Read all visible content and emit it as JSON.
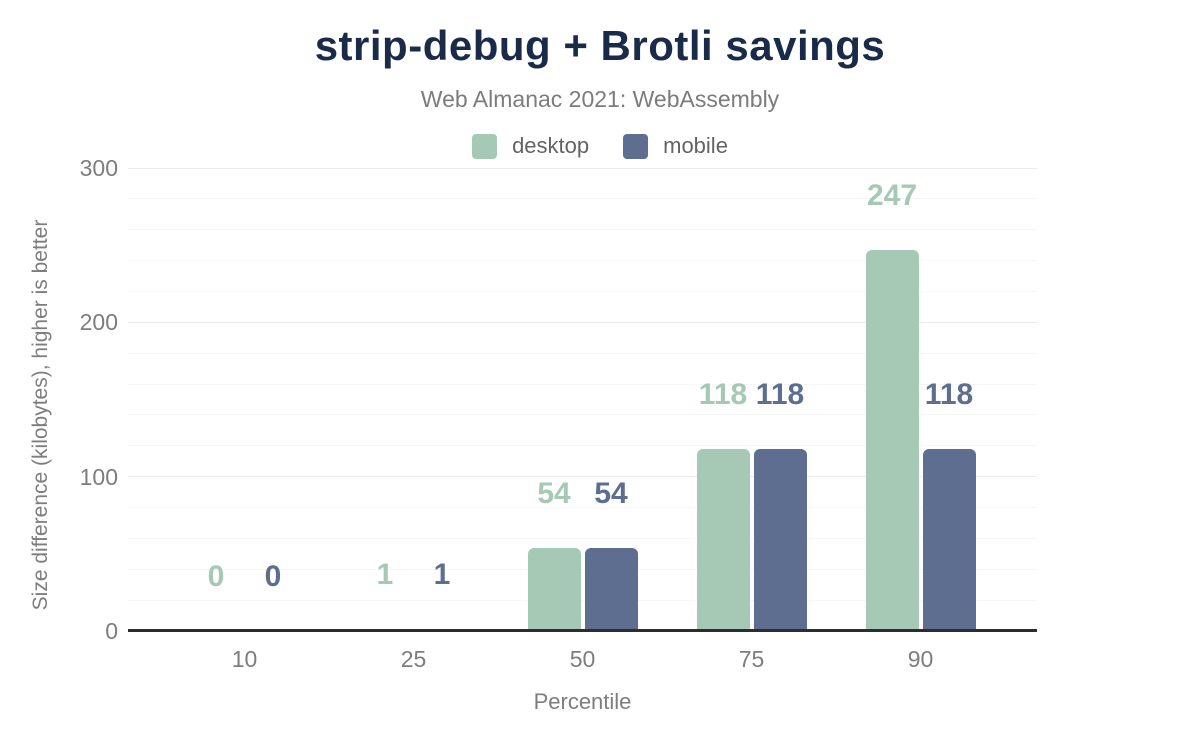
{
  "colors": {
    "title": "#1a2b49",
    "desktop": "#a5c9b5",
    "mobile": "#5e6e90",
    "axis": "#2d2d2d",
    "muted_text": "#7d7d7d"
  },
  "chart_data": {
    "type": "bar",
    "title": "strip-debug + Brotli savings",
    "subtitle": "Web Almanac 2021: WebAssembly",
    "xlabel": "Percentile",
    "ylabel": "Size difference (kilobytes), higher is better",
    "categories": [
      "10",
      "25",
      "50",
      "75",
      "90"
    ],
    "series": [
      {
        "name": "desktop",
        "color": "#a5c9b5",
        "values": [
          0,
          1,
          54,
          118,
          247
        ]
      },
      {
        "name": "mobile",
        "color": "#5e6e90",
        "values": [
          0,
          1,
          54,
          118,
          118
        ]
      }
    ],
    "ylim": [
      0,
      300
    ],
    "yticks": [
      0,
      100,
      200,
      300
    ],
    "grid_step": 20,
    "grid": "horizontal",
    "legend_position": "top",
    "value_labels": "above-bars"
  }
}
